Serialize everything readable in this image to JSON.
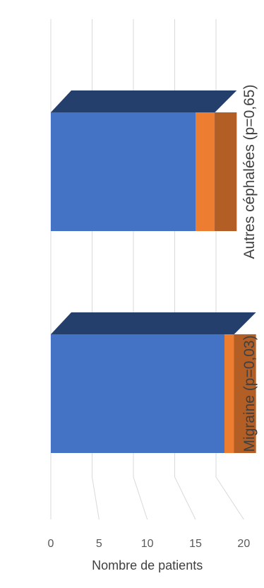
{
  "chart_data": {
    "type": "bar",
    "stacked": true,
    "three_d": true,
    "categories": [
      "Migraine (p=0,03)",
      "Autres céphalées (p=0,65)"
    ],
    "series": [
      {
        "values": [
          18,
          15
        ],
        "color": "#4472C4"
      },
      {
        "values": [
          1,
          2
        ],
        "color": "#ED7D31"
      }
    ],
    "title": "",
    "xlabel": "",
    "ylabel": "Nombre de patients",
    "ylim": [
      0,
      20
    ],
    "yticks": [
      0,
      5,
      10,
      15,
      20
    ],
    "grid": true,
    "legend": "none"
  }
}
